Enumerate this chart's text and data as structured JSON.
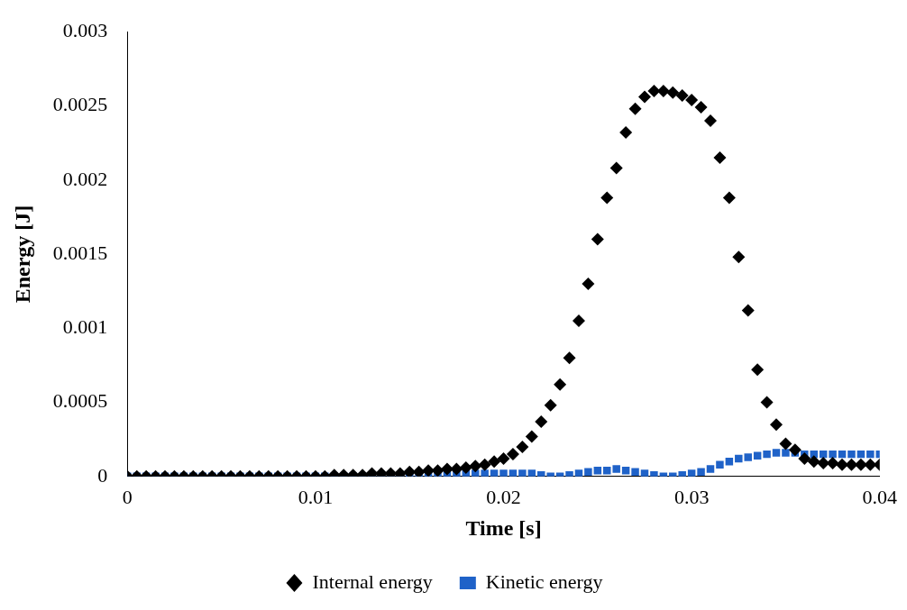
{
  "chart_data": {
    "type": "scatter",
    "xlabel": "Time [s]",
    "ylabel": "Energy [J]",
    "x": [
      0,
      0.0005,
      0.001,
      0.0015,
      0.002,
      0.0025,
      0.003,
      0.0035,
      0.004,
      0.0045,
      0.005,
      0.0055,
      0.006,
      0.0065,
      0.007,
      0.0075,
      0.008,
      0.0085,
      0.009,
      0.0095,
      0.01,
      0.0105,
      0.011,
      0.0115,
      0.012,
      0.0125,
      0.013,
      0.0135,
      0.014,
      0.0145,
      0.015,
      0.0155,
      0.016,
      0.0165,
      0.017,
      0.0175,
      0.018,
      0.0185,
      0.019,
      0.0195,
      0.02,
      0.0205,
      0.021,
      0.0215,
      0.022,
      0.0225,
      0.023,
      0.0235,
      0.024,
      0.0245,
      0.025,
      0.0255,
      0.026,
      0.0265,
      0.027,
      0.0275,
      0.028,
      0.0285,
      0.029,
      0.0295,
      0.03,
      0.0305,
      0.031,
      0.0315,
      0.032,
      0.0325,
      0.033,
      0.0335,
      0.034,
      0.0345,
      0.035,
      0.0355,
      0.036,
      0.0365,
      0.037,
      0.0375,
      0.038,
      0.0385,
      0.039,
      0.0395,
      0.04
    ],
    "series": [
      {
        "name": "Internal energy",
        "color": "#000000",
        "marker": "diamond",
        "values": [
          0,
          0,
          0,
          0,
          0,
          0,
          0,
          0,
          0,
          0,
          0,
          0,
          0,
          0,
          0,
          0,
          0,
          0,
          0,
          0,
          0,
          0,
          1e-05,
          1e-05,
          1e-05,
          1e-05,
          2e-05,
          2e-05,
          2e-05,
          2e-05,
          3e-05,
          3e-05,
          4e-05,
          4e-05,
          5e-05,
          5e-05,
          6e-05,
          7e-05,
          8e-05,
          0.0001,
          0.00012,
          0.00015,
          0.0002,
          0.00027,
          0.00037,
          0.00048,
          0.00062,
          0.0008,
          0.00105,
          0.0013,
          0.0016,
          0.00188,
          0.00208,
          0.00232,
          0.00248,
          0.00256,
          0.0026,
          0.0026,
          0.00259,
          0.00257,
          0.00254,
          0.00249,
          0.0024,
          0.00215,
          0.00188,
          0.00148,
          0.00112,
          0.00072,
          0.0005,
          0.00035,
          0.00022,
          0.00018,
          0.00012,
          0.0001,
          9e-05,
          9e-05,
          8e-05,
          8e-05,
          8e-05,
          8e-05,
          8e-05
        ]
      },
      {
        "name": "Kinetic energy",
        "color": "#1f62c8",
        "marker": "square",
        "values": [
          0,
          0,
          0,
          0,
          0,
          0,
          0,
          0,
          0,
          0,
          0,
          0,
          0,
          0,
          0,
          0,
          0,
          0,
          0,
          0,
          0,
          0,
          0,
          0,
          0,
          0,
          0,
          0,
          0,
          0,
          0,
          0,
          1e-05,
          1e-05,
          2e-05,
          2e-05,
          2e-05,
          2e-05,
          2e-05,
          2e-05,
          2e-05,
          2e-05,
          2e-05,
          2e-05,
          1e-05,
          0,
          0,
          1e-05,
          2e-05,
          3e-05,
          4e-05,
          4e-05,
          5e-05,
          4e-05,
          3e-05,
          2e-05,
          1e-05,
          0,
          0,
          1e-05,
          2e-05,
          3e-05,
          5e-05,
          8e-05,
          0.0001,
          0.00012,
          0.00013,
          0.00014,
          0.00015,
          0.00016,
          0.00016,
          0.00016,
          0.00015,
          0.00015,
          0.00015,
          0.00015,
          0.00015,
          0.00015,
          0.00015,
          0.00015,
          0.00015
        ]
      }
    ],
    "xlim": [
      0,
      0.04
    ],
    "xticks": [
      0,
      0.01,
      0.02,
      0.03,
      0.04
    ],
    "ylim": [
      0,
      0.003
    ],
    "yticks": [
      0,
      0.0005,
      0.001,
      0.0015,
      0.002,
      0.0025,
      0.003
    ],
    "grid": false,
    "legend": "bottom"
  }
}
